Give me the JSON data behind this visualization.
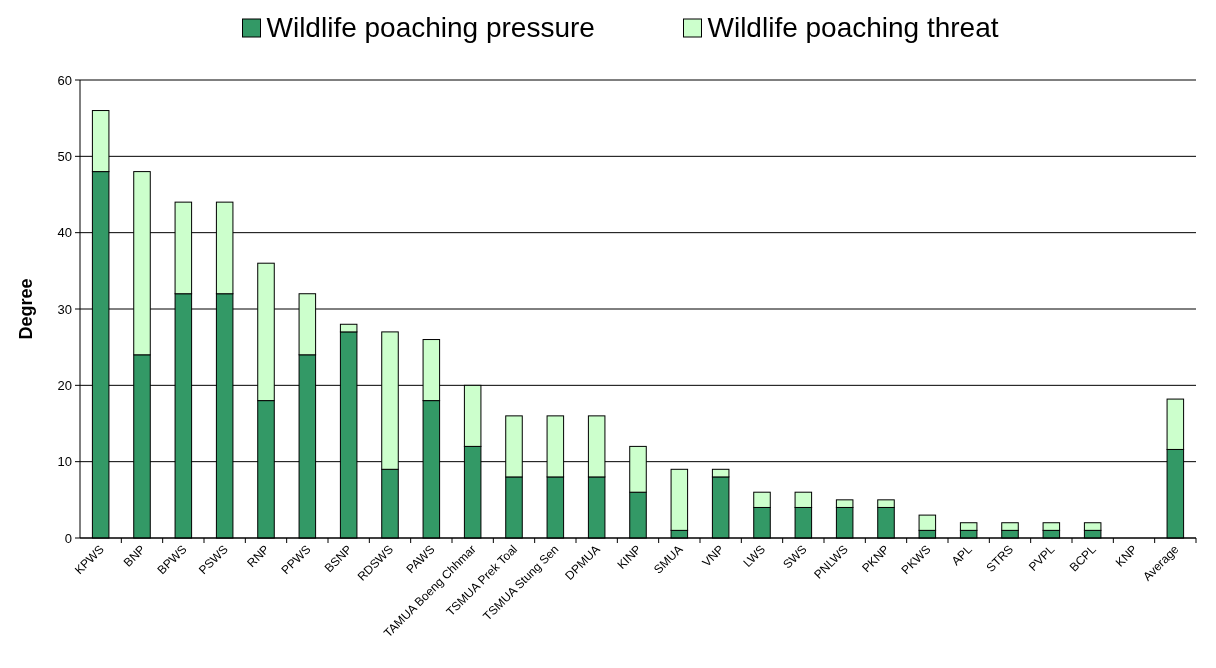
{
  "chart_data": {
    "type": "bar",
    "stacked": true,
    "ylabel": "Degree",
    "categories": [
      "KPWS",
      "BNP",
      "BPWS",
      "PSWS",
      "RNP",
      "PPWS",
      "BSNP",
      "RDSWS",
      "PAWS",
      "TAMUA Boeng Chhmar",
      "TSMUA Prek Toal",
      "TSMUA Stung Sen",
      "DPMUA",
      "KINP",
      "SMUA",
      "VNP",
      "LWS",
      "SWS",
      "PNLWS",
      "PKNP",
      "PKWS",
      "APL",
      "STRS",
      "PVPL",
      "BCPL",
      "KNP",
      "Average"
    ],
    "series": [
      {
        "name": "Wildlife poaching pressure",
        "color": "#339966",
        "values": [
          48,
          24,
          32,
          32,
          18,
          24,
          27,
          9,
          18,
          12,
          8,
          8,
          8,
          6,
          1,
          8,
          4,
          4,
          4,
          4,
          1,
          1,
          1,
          1,
          1,
          0,
          11.6
        ]
      },
      {
        "name": "Wildlife poaching threat",
        "color": "#ccffcc",
        "values": [
          8,
          24,
          12,
          12,
          18,
          8,
          1,
          18,
          8,
          8,
          8,
          8,
          8,
          6,
          8,
          1,
          2,
          2,
          1,
          1,
          2,
          1,
          1,
          1,
          1,
          0,
          6.6
        ]
      }
    ],
    "ylim": [
      0,
      60
    ],
    "yticks": [
      0,
      10,
      20,
      30,
      40,
      50,
      60
    ],
    "grid": "y",
    "legend": "top"
  }
}
